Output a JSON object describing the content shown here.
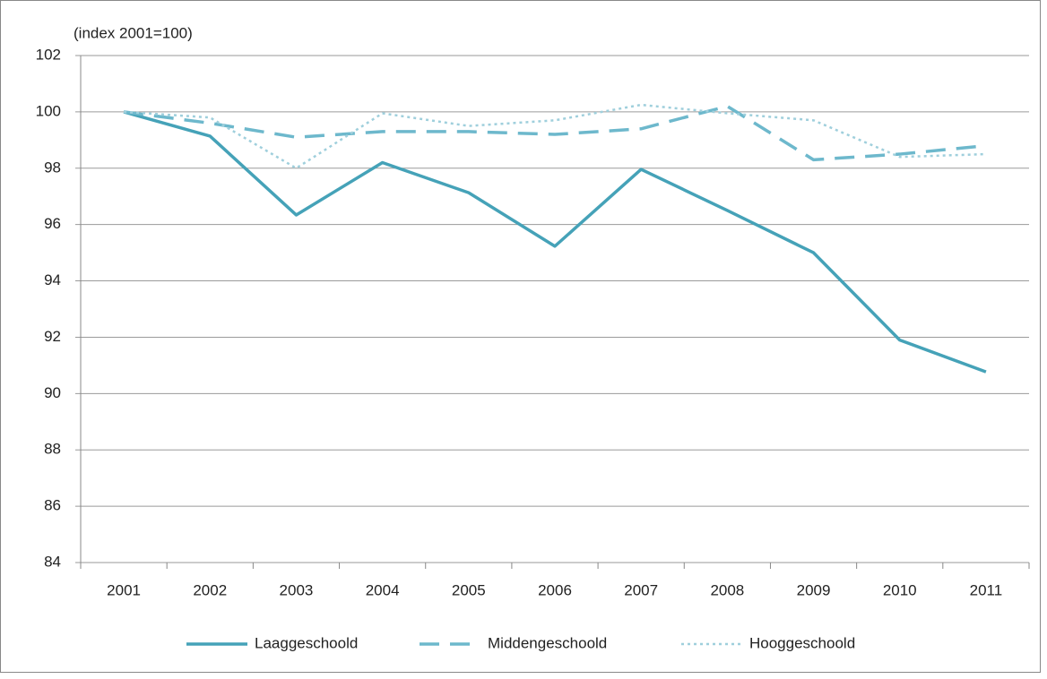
{
  "chart_data": {
    "type": "line",
    "y_unit_label": "(index 2001=100)",
    "categories": [
      "2001",
      "2002",
      "2003",
      "2004",
      "2005",
      "2006",
      "2007",
      "2008",
      "2009",
      "2010",
      "2011"
    ],
    "series": [
      {
        "name": "Laaggeschoold",
        "color": "#45a2b8",
        "line_style": "solid",
        "values": [
          100,
          99.14,
          96.34,
          98.2,
          97.13,
          95.23,
          97.96,
          96.5,
          95.0,
          91.9,
          90.77
        ]
      },
      {
        "name": "Middengeschoold",
        "color": "#6db8cc",
        "line_style": "dashed",
        "values": [
          100,
          99.6,
          99.1,
          99.3,
          99.3,
          99.2,
          99.4,
          100.2,
          98.3,
          98.5,
          98.8
        ]
      },
      {
        "name": "Hooggeschoold",
        "color": "#9fcfdc",
        "line_style": "dotted",
        "values": [
          100,
          99.8,
          98.0,
          99.95,
          99.5,
          99.7,
          100.25,
          99.95,
          99.7,
          98.4,
          98.5
        ]
      }
    ],
    "ylim": [
      84,
      102
    ],
    "yticks": [
      84,
      86,
      88,
      90,
      92,
      94,
      96,
      98,
      100,
      102
    ],
    "grid": true,
    "legend": "bottom"
  }
}
